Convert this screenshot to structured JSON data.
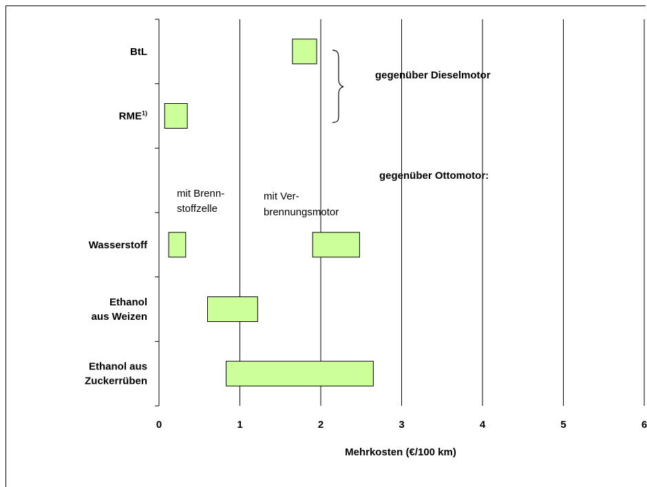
{
  "chart_data": {
    "type": "bar",
    "orientation": "horizontal-range",
    "title": "",
    "xlabel": "Mehrkosten (€/100 km)",
    "ylabel": "",
    "xlim": [
      0,
      6
    ],
    "x_ticks": [
      "0",
      "1",
      "2",
      "3",
      "4",
      "5",
      "6"
    ],
    "grid": true,
    "bar_color": "#ccff99",
    "categories": [
      {
        "lines": [
          "BtL"
        ]
      },
      {
        "lines": [
          "RME"
        ],
        "sup": "1)"
      },
      {
        "lines": [
          ""
        ]
      },
      {
        "lines": [
          "Wasserstoff"
        ]
      },
      {
        "lines": [
          "Ethanol",
          "aus Weizen"
        ]
      },
      {
        "lines": [
          "Ethanol aus",
          "Zuckerrüben"
        ]
      }
    ],
    "ranges": [
      {
        "category": "BtL",
        "from": 1.65,
        "to": 1.95
      },
      {
        "category": "RME",
        "from": 0.07,
        "to": 0.35
      },
      {
        "category": "Wasserstoff",
        "from": 0.12,
        "to": 0.33
      },
      {
        "category": "Wasserstoff",
        "from": 1.9,
        "to": 2.48
      },
      {
        "category": "Ethanol aus Weizen",
        "from": 0.6,
        "to": 1.22
      },
      {
        "category": "Ethanol aus Zuckerrüben",
        "from": 0.83,
        "to": 2.65
      }
    ],
    "annotations": {
      "diesel": "gegenüber Dieselmotor",
      "otto": "gegenüber Ottomotor:",
      "fuel_cell": [
        "mit Brenn-",
        "stoffzelle"
      ],
      "combustion": [
        "mit Ver-",
        "brennungsmotor"
      ]
    }
  }
}
